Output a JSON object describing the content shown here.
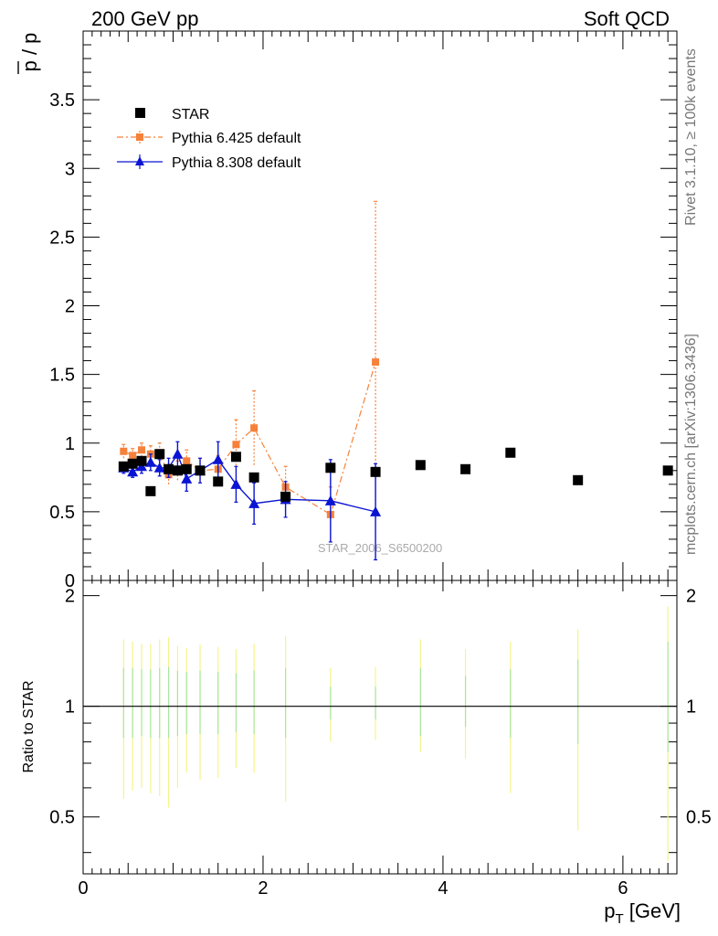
{
  "header": {
    "left": "200 GeV pp",
    "right": "Soft QCD"
  },
  "side_text": {
    "rivet": "Rivet 3.1.10, ≥ 100k events",
    "mcplots": "mcplots.cern.ch [arXiv:1306.3436]"
  },
  "watermark": "STAR_2006_S6500200",
  "colors": {
    "star": "#000000",
    "pythia6": "#f5813a",
    "pythia8": "#0a14d2",
    "band_outer": "#f4f48a",
    "band_inner": "#a8e6a0"
  },
  "chart_data": [
    {
      "type": "scatter",
      "title": "",
      "ylabel_top": "p",
      "ylabel_bottom": "p",
      "xlim": [
        0,
        6.6
      ],
      "ylim": [
        0,
        4.0
      ],
      "yticks": [
        "0",
        "0.5",
        "1",
        "1.5",
        "2",
        "2.5",
        "3",
        "3.5"
      ],
      "legend_position": "top-left",
      "series": [
        {
          "name": "STAR",
          "marker": "square",
          "x": [
            0.45,
            0.55,
            0.65,
            0.75,
            0.85,
            0.95,
            1.05,
            1.15,
            1.3,
            1.5,
            1.7,
            1.9,
            2.25,
            2.75,
            3.25,
            3.75,
            4.25,
            4.75,
            5.5,
            6.5
          ],
          "y": [
            0.83,
            0.85,
            0.87,
            0.65,
            0.92,
            0.81,
            0.8,
            0.81,
            0.8,
            0.72,
            0.9,
            0.75,
            0.61,
            0.82,
            0.79,
            0.84,
            0.81,
            0.93,
            0.73,
            0.8
          ]
        },
        {
          "name": "Pythia 6.425 default",
          "marker": "small-square",
          "line": "dash-dot",
          "x": [
            0.45,
            0.55,
            0.65,
            0.75,
            0.85,
            0.95,
            1.05,
            1.15,
            1.3,
            1.5,
            1.7,
            1.9,
            2.25,
            2.75,
            3.25
          ],
          "y": [
            0.94,
            0.91,
            0.95,
            0.92,
            0.93,
            0.77,
            0.8,
            0.87,
            0.8,
            0.81,
            0.99,
            1.11,
            0.68,
            0.48,
            1.59
          ],
          "err": [
            0.05,
            0.05,
            0.05,
            0.06,
            0.07,
            0.07,
            0.07,
            0.08,
            0.09,
            0.1,
            0.18,
            0.27,
            0.15,
            0.2,
            1.17
          ]
        },
        {
          "name": "Pythia 8.308 default",
          "marker": "triangle",
          "line": "solid",
          "x": [
            0.45,
            0.55,
            0.65,
            0.75,
            0.85,
            0.95,
            1.05,
            1.15,
            1.3,
            1.5,
            1.7,
            1.9,
            2.25,
            2.75,
            3.25
          ],
          "y": [
            0.82,
            0.79,
            0.83,
            0.86,
            0.82,
            0.82,
            0.92,
            0.74,
            0.8,
            0.88,
            0.7,
            0.56,
            0.59,
            0.58,
            0.5
          ],
          "err": [
            0.04,
            0.04,
            0.05,
            0.06,
            0.06,
            0.07,
            0.09,
            0.09,
            0.09,
            0.13,
            0.13,
            0.15,
            0.13,
            0.3,
            0.35
          ]
        }
      ]
    },
    {
      "type": "scatter",
      "ylabel": "Ratio to STAR",
      "xlabel": "p",
      "xlabel_sub": "T",
      "xlabel_unit": "[GeV]",
      "xlim": [
        0,
        6.6
      ],
      "ylim": [
        0.35,
        2.2
      ],
      "reference_line": 1,
      "yticks": [
        "0.5",
        "1",
        "2"
      ],
      "xticks": [
        "0",
        "2",
        "4",
        "6"
      ],
      "bands": {
        "x": [
          0.45,
          0.55,
          0.65,
          0.75,
          0.85,
          0.95,
          1.05,
          1.15,
          1.3,
          1.5,
          1.7,
          1.9,
          2.25,
          2.75,
          3.25,
          3.75,
          4.25,
          4.75,
          5.5,
          6.5
        ],
        "outer_lo": [
          0.56,
          0.59,
          0.6,
          0.58,
          0.57,
          0.53,
          0.6,
          0.66,
          0.63,
          0.64,
          0.68,
          0.66,
          0.55,
          0.8,
          0.81,
          0.75,
          0.72,
          0.58,
          0.46,
          0.38
        ],
        "outer_hi": [
          1.52,
          1.5,
          1.48,
          1.48,
          1.52,
          1.54,
          1.46,
          1.44,
          1.47,
          1.45,
          1.43,
          1.48,
          1.55,
          1.27,
          1.28,
          1.52,
          1.43,
          1.5,
          1.62,
          1.87
        ],
        "inner_lo": [
          0.82,
          0.82,
          0.83,
          0.82,
          0.82,
          0.82,
          0.83,
          0.84,
          0.84,
          0.84,
          0.85,
          0.84,
          0.82,
          0.92,
          0.92,
          0.83,
          0.88,
          0.82,
          0.79,
          0.75
        ],
        "inner_hi": [
          1.27,
          1.27,
          1.26,
          1.26,
          1.27,
          1.28,
          1.25,
          1.24,
          1.25,
          1.24,
          1.23,
          1.25,
          1.27,
          1.13,
          1.13,
          1.27,
          1.21,
          1.26,
          1.34,
          1.5
        ]
      }
    }
  ]
}
